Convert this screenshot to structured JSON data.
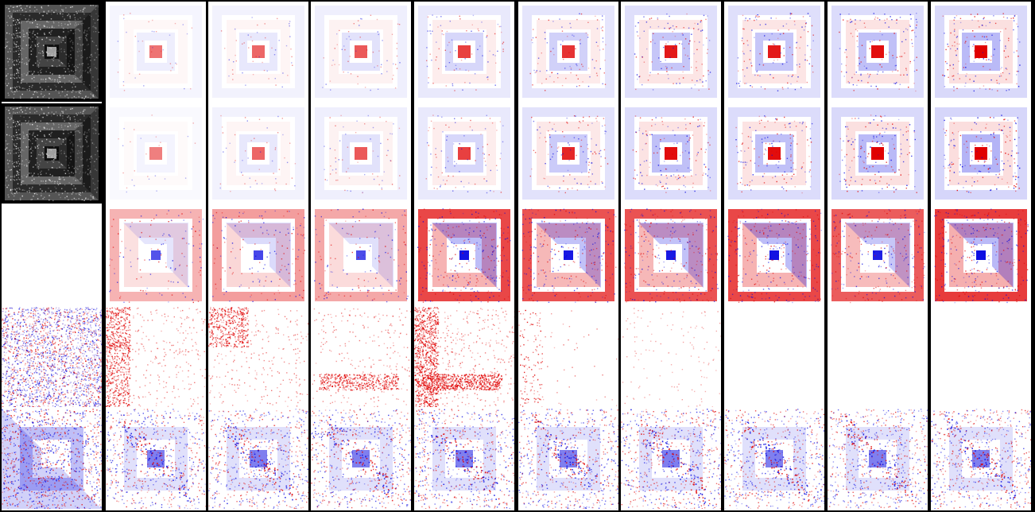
{
  "figure": {
    "columns": 10,
    "rows": 5,
    "palette": {
      "positive": "#e00000",
      "negative": "#0000e0",
      "neutral": "#ffffff",
      "background": "#000000",
      "grayscale_light": "#ffffff",
      "grayscale_dark": "#000000"
    },
    "row_kinds": [
      "grayscale-pattern",
      "diverging-heatmap",
      "diverging-heatmap",
      "diverging-noise-map",
      "diverging-noise-map"
    ],
    "cells": [
      [
        {
          "kind": "gray",
          "v": 1
        },
        {
          "kind": "squares",
          "a": 0.15,
          "c": 0.9,
          "s": 0
        },
        {
          "kind": "squares",
          "a": 0.2,
          "c": 0.9,
          "s": 1
        },
        {
          "kind": "squares",
          "a": 0.25,
          "c": 0.9,
          "s": 2
        },
        {
          "kind": "squares",
          "a": 0.35,
          "c": 0.9,
          "s": 3
        },
        {
          "kind": "squares",
          "a": 0.4,
          "c": 0.9,
          "s": 4
        },
        {
          "kind": "squares",
          "a": 0.5,
          "c": 0.9,
          "s": 5
        },
        {
          "kind": "squares",
          "a": 0.5,
          "c": 0.9,
          "s": 6
        },
        {
          "kind": "squares",
          "a": 0.55,
          "c": 0.9,
          "s": 7
        },
        {
          "kind": "squares",
          "a": 0.6,
          "c": 0.9,
          "s": 8
        }
      ],
      [
        {
          "kind": "gray",
          "v": 2
        },
        {
          "kind": "squares",
          "a": 0.1,
          "c": 0.7,
          "s": 10
        },
        {
          "kind": "squares",
          "a": 0.2,
          "c": 0.7,
          "s": 11
        },
        {
          "kind": "squares",
          "a": 0.25,
          "c": 0.7,
          "s": 12
        },
        {
          "kind": "squares",
          "a": 0.35,
          "c": 0.7,
          "s": 13
        },
        {
          "kind": "squares",
          "a": 0.45,
          "c": 0.7,
          "s": 14
        },
        {
          "kind": "squares",
          "a": 0.55,
          "c": 0.8,
          "s": 15
        },
        {
          "kind": "squares",
          "a": 0.55,
          "c": 0.8,
          "s": 16
        },
        {
          "kind": "squares",
          "a": 0.6,
          "c": 0.8,
          "s": 17
        },
        {
          "kind": "squares",
          "a": 0.65,
          "c": 0.8,
          "s": 18
        }
      ],
      [
        {
          "kind": "blank"
        },
        {
          "kind": "bold",
          "a": 0.35,
          "s": 20
        },
        {
          "kind": "bold",
          "a": 0.45,
          "s": 21
        },
        {
          "kind": "bold",
          "a": 0.4,
          "s": 22
        },
        {
          "kind": "bold",
          "a": 0.85,
          "s": 23
        },
        {
          "kind": "bold",
          "a": 0.8,
          "s": 24
        },
        {
          "kind": "bold",
          "a": 0.8,
          "s": 25
        },
        {
          "kind": "bold",
          "a": 0.85,
          "s": 26
        },
        {
          "kind": "bold",
          "a": 0.75,
          "s": 27
        },
        {
          "kind": "bold",
          "a": 0.9,
          "s": 28
        }
      ],
      [
        {
          "kind": "noise",
          "a": 0.7,
          "s": 30
        },
        {
          "kind": "smear",
          "a": 0.7,
          "s": 31,
          "mode": "left"
        },
        {
          "kind": "smear",
          "a": 0.6,
          "s": 32,
          "mode": "corner"
        },
        {
          "kind": "smear",
          "a": 0.6,
          "s": 33,
          "mode": "bottom"
        },
        {
          "kind": "smear",
          "a": 0.9,
          "s": 34,
          "mode": "leftbottom"
        },
        {
          "kind": "smear",
          "a": 0.12,
          "s": 35,
          "mode": "left"
        },
        {
          "kind": "faint",
          "a": 0.05,
          "s": 36
        },
        {
          "kind": "blank"
        },
        {
          "kind": "blank"
        },
        {
          "kind": "blank"
        }
      ],
      [
        {
          "kind": "tri",
          "a": 0.6,
          "s": 40
        },
        {
          "kind": "diag",
          "a": 0.5,
          "s": 41
        },
        {
          "kind": "diag",
          "a": 0.5,
          "s": 42
        },
        {
          "kind": "diag",
          "a": 0.5,
          "s": 43
        },
        {
          "kind": "diag",
          "a": 0.5,
          "s": 44
        },
        {
          "kind": "diag",
          "a": 0.5,
          "s": 45
        },
        {
          "kind": "diag",
          "a": 0.5,
          "s": 46
        },
        {
          "kind": "diag",
          "a": 0.5,
          "s": 47
        },
        {
          "kind": "diag",
          "a": 0.5,
          "s": 48
        },
        {
          "kind": "diag",
          "a": 0.5,
          "s": 49
        }
      ]
    ]
  }
}
